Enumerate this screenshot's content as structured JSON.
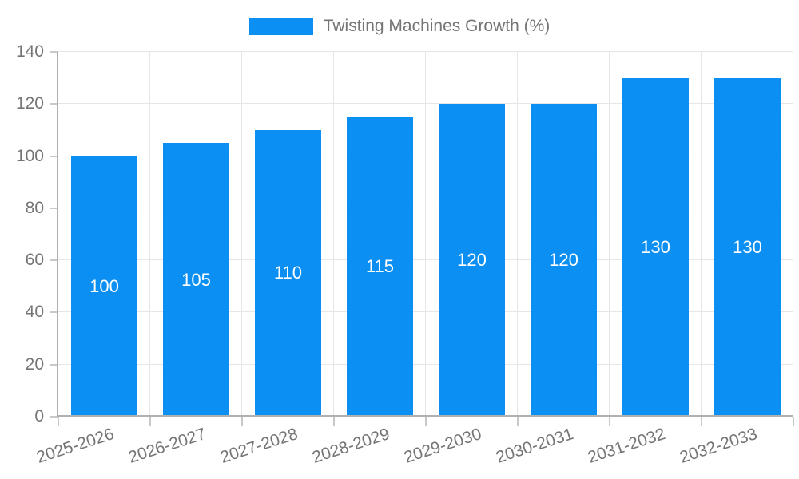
{
  "legend": {
    "label": "Twisting Machines Growth (%)"
  },
  "chart_data": {
    "type": "bar",
    "title": "Twisting Machines Growth (%)",
    "categories": [
      "2025-2026",
      "2026-2027",
      "2027-2028",
      "2028-2029",
      "2029-2030",
      "2030-2031",
      "2031-2032",
      "2032-2033"
    ],
    "values": [
      100,
      105,
      110,
      115,
      120,
      120,
      130,
      130
    ],
    "xlabel": "",
    "ylabel": "",
    "ylim": [
      0,
      140
    ],
    "yticks": [
      0,
      20,
      40,
      60,
      80,
      100,
      120,
      140
    ],
    "grid": true,
    "legend_position": "top-center",
    "x_label_rotation_deg": -18,
    "colors": {
      "bar": "#0b8ff2",
      "value_label": "#ffffff",
      "axis_text": "#757575",
      "grid_line": "#e6e6e6",
      "axis_line": "#b0b0b0",
      "tick": "#c9c9c9"
    }
  }
}
